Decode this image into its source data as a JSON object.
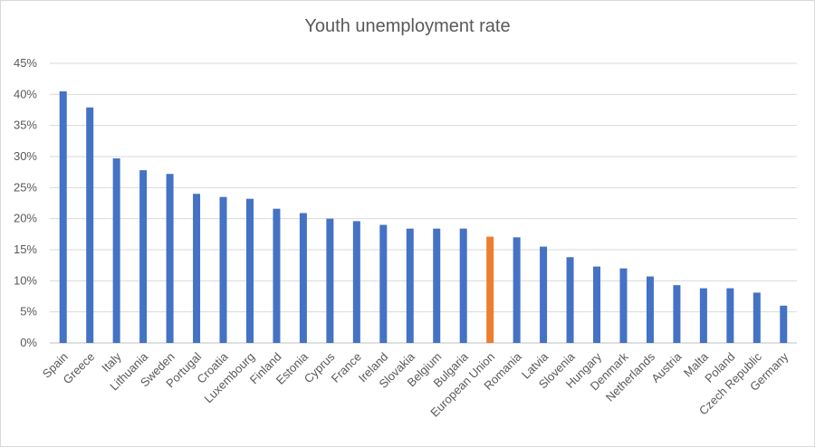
{
  "chart_data": {
    "type": "bar",
    "title": "Youth unemployment rate",
    "xlabel": "",
    "ylabel": "",
    "ylim": [
      0,
      45
    ],
    "yticks": [
      "0%",
      "5%",
      "10%",
      "15%",
      "20%",
      "25%",
      "30%",
      "35%",
      "40%",
      "45%"
    ],
    "ytick_values": [
      0,
      5,
      10,
      15,
      20,
      25,
      30,
      35,
      40,
      45
    ],
    "grid": "horizontal",
    "legend": "none",
    "bar_color": "#4472C4",
    "highlight_color": "#ED7D31",
    "highlight_category": "European Union",
    "categories": [
      "Spain",
      "Greece",
      "Italy",
      "Lithuania",
      "Sweden",
      "Portugal",
      "Croatia",
      "Luxembourg",
      "Finland",
      "Estonia",
      "Cyprus",
      "France",
      "Ireland",
      "Slovakia",
      "Belgium",
      "Bulgaria",
      "European Union",
      "Romania",
      "Latvia",
      "Slovenia",
      "Hungary",
      "Denmark",
      "Netherlands",
      "Austria",
      "Malta",
      "Poland",
      "Czech Republic",
      "Germany"
    ],
    "values": [
      40.5,
      37.9,
      29.7,
      27.8,
      27.2,
      24.0,
      23.5,
      23.2,
      21.6,
      20.9,
      20.0,
      19.6,
      19.0,
      18.4,
      18.4,
      18.4,
      17.1,
      17.0,
      15.5,
      13.8,
      12.3,
      12.0,
      10.7,
      9.3,
      8.8,
      8.8,
      8.1,
      6.0
    ]
  }
}
